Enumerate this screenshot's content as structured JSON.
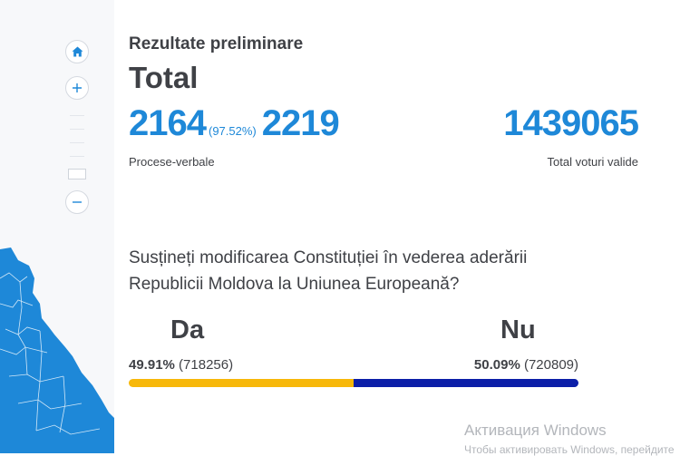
{
  "header": {
    "subtitle": "Rezultate preliminare",
    "title": "Total"
  },
  "stats": {
    "processed": "2164",
    "processed_pct": "(97.52%)",
    "total_reports": "2219",
    "reports_label": "Procese-verbale",
    "valid_votes": "1439065",
    "valid_votes_label": "Total voturi valide"
  },
  "question": {
    "line1": "Susțineți modificarea Constituției în vederea aderării",
    "line2": "Republicii Moldova la Uniunea Europeană?"
  },
  "options": {
    "da": {
      "label": "Da",
      "pct": "49.91%",
      "count": "(718256)",
      "share": 49.91,
      "color": "#f7b80a"
    },
    "nu": {
      "label": "Nu",
      "pct": "50.09%",
      "count": "(720809)",
      "share": 50.09,
      "color": "#0c1fa8"
    }
  },
  "map_controls": {
    "home_icon": "home-icon",
    "zoom_in_icon": "plus-icon",
    "zoom_out_icon": "minus-icon"
  },
  "colors": {
    "accent": "#1e88d8",
    "map_fill": "#1e88d8"
  },
  "watermark": {
    "title": "Активация Windows",
    "subtitle": "Чтобы активировать Windows, перейдите"
  }
}
